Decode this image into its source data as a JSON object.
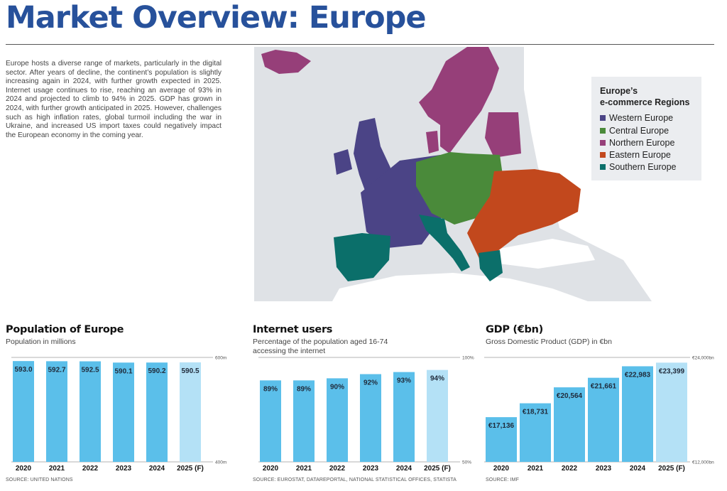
{
  "title": "Market Overview: Europe",
  "intro": "Europe hosts a diverse range of markets, particularly in the digital sector. After years of decline, the continent’s population is slightly increasing again in 2024, with further growth expected in 2025. Internet usage continues to rise, reaching an average of 93% in 2024 and projected to climb to 94% in 2025. GDP has grown in 2024, with further growth anticipated in 2025. However, challenges such as high inflation rates, global turmoil including the war in Ukraine, and increased US import taxes could negatively impact the European economy in the coming year.",
  "legend": {
    "title": "Europe’s\ne-commerce Regions",
    "items": [
      {
        "label": "Western Europe",
        "color": "#4b4486"
      },
      {
        "label": "Central Europe",
        "color": "#4a8a3a"
      },
      {
        "label": "Northern Europe",
        "color": "#963f79"
      },
      {
        "label": "Eastern Europe",
        "color": "#c2481d"
      },
      {
        "label": "Southern Europe",
        "color": "#0b6f6a"
      }
    ]
  },
  "colors": {
    "bar": "#5bbfea",
    "bar_forecast": "#b4e1f6",
    "map_land": "#ffffff",
    "map_water": "#dfe2e6"
  },
  "chart_data": [
    {
      "type": "bar",
      "title": "Population of Europe",
      "subtitle": "Population in millions",
      "categories": [
        "2020",
        "2021",
        "2022",
        "2023",
        "2024",
        "2025 (F)"
      ],
      "values": [
        593.0,
        592.7,
        592.5,
        590.1,
        590.2,
        590.5
      ],
      "value_labels": [
        "593.0",
        "592.7",
        "592.5",
        "590.1",
        "590.2",
        "590.5"
      ],
      "forecast": [
        false,
        false,
        false,
        false,
        false,
        true
      ],
      "axis_min_label": "400m",
      "axis_max_label": "600m",
      "ylim": [
        400,
        600
      ],
      "source": "SOURCE: UNITED NATIONS"
    },
    {
      "type": "bar",
      "title": "Internet users",
      "subtitle": "Percentage of the population aged 16-74 accessing the internet",
      "categories": [
        "2020",
        "2021",
        "2022",
        "2023",
        "2024",
        "2025 (F)"
      ],
      "values": [
        89,
        89,
        90,
        92,
        93,
        94
      ],
      "value_labels": [
        "89%",
        "89%",
        "90%",
        "92%",
        "93%",
        "94%"
      ],
      "forecast": [
        false,
        false,
        false,
        false,
        false,
        true
      ],
      "axis_min_label": "50%",
      "axis_max_label": "100%",
      "ylim": [
        50,
        100
      ],
      "source": "SOURCE: EUROSTAT, DATAREPORTAL, NATIONAL STATISTICAL OFFICES, STATISTA"
    },
    {
      "type": "bar",
      "title": "GDP (€bn)",
      "subtitle": "Gross Domestic Product (GDP) in €bn",
      "categories": [
        "2020",
        "2021",
        "2022",
        "2023",
        "2024",
        "2025 (F)"
      ],
      "values": [
        17136,
        18731,
        20564,
        21661,
        22983,
        23399
      ],
      "value_labels": [
        "€17,136",
        "€18,731",
        "€20,564",
        "€21,661",
        "€22,983",
        "€23,399"
      ],
      "forecast": [
        false,
        false,
        false,
        false,
        false,
        true
      ],
      "axis_min_label": "€12,000bn",
      "axis_max_label": "€24,000bn",
      "ylim": [
        12000,
        24000
      ],
      "source": "SOURCE: IMF"
    }
  ]
}
